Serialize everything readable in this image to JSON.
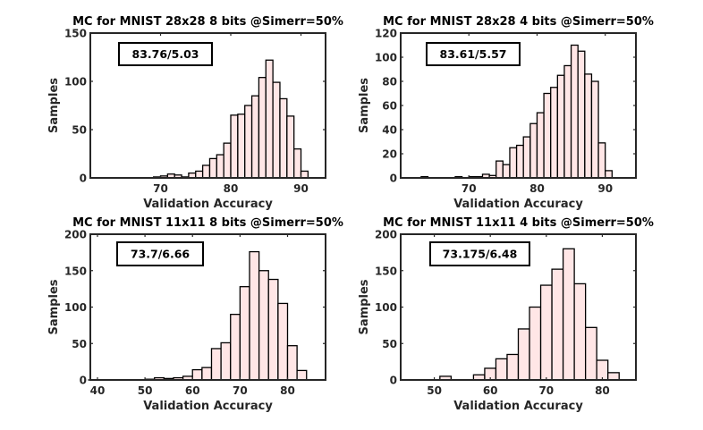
{
  "chart_data": [
    {
      "type": "bar",
      "title": "MC for MNIST 28x28 8 bits @Simerr=50%",
      "xlabel": "Validation Accuracy",
      "ylabel": "Samples",
      "annotation": "83.76/5.03",
      "xlim": [
        60,
        93.5
      ],
      "ylim": [
        0,
        150
      ],
      "xticks": [
        70,
        80,
        90
      ],
      "yticks": [
        0,
        50,
        100,
        150
      ],
      "bar_color": "#ffe6e6",
      "bin_edges": [
        62,
        63,
        64,
        65,
        66,
        67,
        68,
        69,
        70,
        71,
        72,
        73,
        74,
        75,
        76,
        77,
        78,
        79,
        80,
        81,
        82,
        83,
        84,
        85,
        86,
        87,
        88,
        89,
        90,
        91,
        92
      ],
      "values": [
        0,
        0,
        0,
        0,
        0,
        0,
        0,
        1,
        2,
        4,
        3,
        1,
        5,
        7,
        13,
        20,
        24,
        36,
        65,
        66,
        75,
        85,
        104,
        122,
        99,
        82,
        64,
        30,
        7,
        0
      ]
    },
    {
      "type": "bar",
      "title": "MC for MNIST 28x28 4 bits @Simerr=50%",
      "xlabel": "Validation Accuracy",
      "ylabel": "Samples",
      "annotation": "83.61/5.57",
      "xlim": [
        60,
        94.5
      ],
      "ylim": [
        0,
        120
      ],
      "xticks": [
        70,
        80,
        90
      ],
      "yticks": [
        0,
        20,
        40,
        60,
        80,
        100,
        120
      ],
      "bar_color": "#ffe6e6",
      "bin_edges": [
        63,
        64,
        65,
        66,
        67,
        68,
        69,
        70,
        71,
        72,
        73,
        74,
        75,
        76,
        77,
        78,
        79,
        80,
        81,
        82,
        83,
        84,
        85,
        86,
        87,
        88,
        89,
        90,
        91,
        92
      ],
      "values": [
        1,
        0,
        0,
        0,
        0,
        1,
        0,
        1,
        1,
        3,
        2,
        14,
        11,
        25,
        27,
        34,
        45,
        54,
        70,
        75,
        85,
        93,
        110,
        105,
        86,
        80,
        29,
        6,
        0
      ]
    },
    {
      "type": "bar",
      "title": "MC for MNIST 11x11 8 bits @Simerr=50%",
      "xlabel": "Validation Accuracy",
      "ylabel": "Samples",
      "annotation": "73.7/6.66",
      "xlim": [
        38.5,
        88
      ],
      "ylim": [
        0,
        200
      ],
      "xticks": [
        40,
        50,
        60,
        70,
        80
      ],
      "yticks": [
        0,
        50,
        100,
        150,
        200
      ],
      "bar_color": "#ffe6e6",
      "bin_edges": [
        38,
        40,
        42,
        44,
        46,
        48,
        50,
        52,
        54,
        56,
        58,
        60,
        62,
        64,
        66,
        68,
        70,
        72,
        74,
        76,
        78,
        80,
        82,
        84
      ],
      "values": [
        0,
        0,
        0,
        0,
        0,
        0,
        1,
        3,
        2,
        3,
        5,
        14,
        17,
        43,
        51,
        90,
        128,
        176,
        150,
        138,
        105,
        47,
        13
      ]
    },
    {
      "type": "bar",
      "title": "MC for MNIST 11x11 4 bits @Simerr=50%",
      "xlabel": "Validation Accuracy",
      "ylabel": "Samples",
      "annotation": "73.175/6.48",
      "xlim": [
        44,
        86
      ],
      "ylim": [
        0,
        200
      ],
      "xticks": [
        50,
        60,
        70,
        80
      ],
      "yticks": [
        0,
        50,
        100,
        150,
        200
      ],
      "bar_color": "#ffe6e6",
      "bin_edges": [
        45,
        47,
        49,
        51,
        53,
        55,
        57,
        59,
        61,
        63,
        65,
        67,
        69,
        71,
        73,
        75,
        77,
        79,
        81,
        83,
        85
      ],
      "values": [
        0,
        0,
        0,
        5,
        0,
        0,
        7,
        16,
        29,
        35,
        70,
        100,
        130,
        152,
        180,
        132,
        72,
        27,
        10,
        0
      ]
    }
  ]
}
